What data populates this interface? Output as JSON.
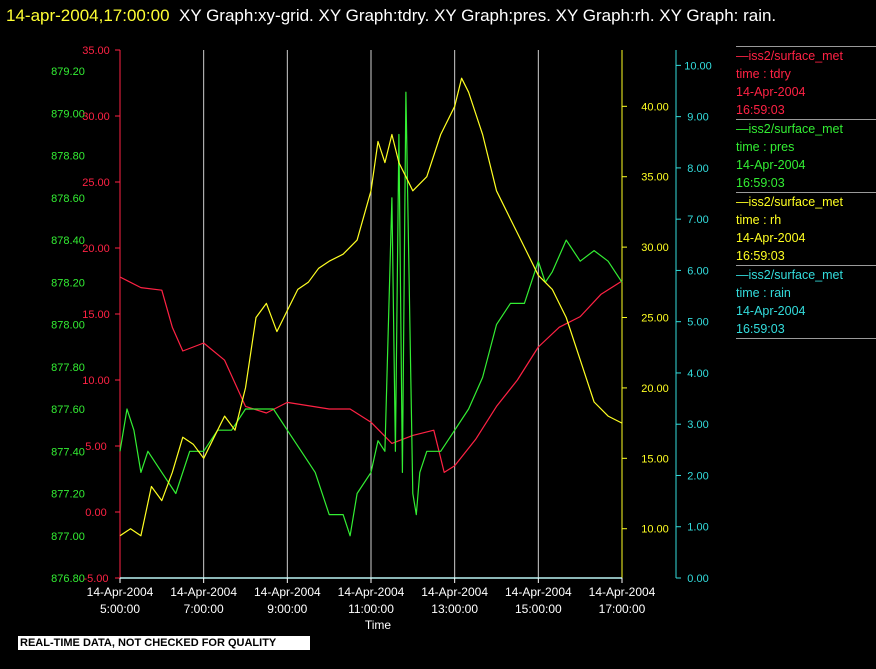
{
  "title": {
    "timestamp": "14-apr-2004,17:00:00",
    "text": "XY Graph:xy-grid.  XY Graph:tdry.  XY Graph:pres.  XY Graph:rh.  XY Graph: rain."
  },
  "legend": [
    {
      "name": "iss2/surface_met",
      "field": "time : tdry",
      "date": "14-Apr-2004",
      "time": "16:59:03",
      "color": "#ff2244"
    },
    {
      "name": "iss2/surface_met",
      "field": "time : pres",
      "date": "14-Apr-2004",
      "time": "16:59:03",
      "color": "#33ee33"
    },
    {
      "name": "iss2/surface_met",
      "field": "time : rh",
      "date": "14-Apr-2004",
      "time": "16:59:03",
      "color": "#ffff22"
    },
    {
      "name": "iss2/surface_met",
      "field": "time : rain",
      "date": "14-Apr-2004",
      "time": "16:59:03",
      "color": "#33dddd"
    }
  ],
  "footer": "REAL-TIME DATA, NOT CHECKED FOR QUALITY",
  "chart_data": {
    "type": "line",
    "xlabel": "Time",
    "x_ticks": [
      {
        "date": "14-Apr-2004",
        "time": "5:00:00"
      },
      {
        "date": "14-Apr-2004",
        "time": "7:00:00"
      },
      {
        "date": "14-Apr-2004",
        "time": "9:00:00"
      },
      {
        "date": "14-Apr-2004",
        "time": "11:00:00"
      },
      {
        "date": "14-Apr-2004",
        "time": "13:00:00"
      },
      {
        "date": "14-Apr-2004",
        "time": "15:00:00"
      },
      {
        "date": "14-Apr-2004",
        "time": "17:00:00"
      }
    ],
    "xlim": [
      "05:00",
      "17:00"
    ],
    "grid": "vertical",
    "axes": {
      "pres": {
        "color": "#33ee33",
        "lim": [
          876.8,
          879.3
        ],
        "ticks": [
          "876.80",
          "877.00",
          "877.20",
          "877.40",
          "877.60",
          "877.80",
          "878.00",
          "878.20",
          "878.40",
          "878.60",
          "878.80",
          "879.00",
          "879.20"
        ]
      },
      "tdry": {
        "color": "#ff2244",
        "lim": [
          -5,
          35
        ],
        "ticks": [
          "-5.00",
          "0.00",
          "5.00",
          "10.00",
          "15.00",
          "20.00",
          "25.00",
          "30.00",
          "35.00"
        ]
      },
      "rh": {
        "color": "#ffff22",
        "lim": [
          6.5,
          44
        ],
        "ticks": [
          "10.00",
          "15.00",
          "20.00",
          "25.00",
          "30.00",
          "35.00",
          "40.00"
        ]
      },
      "rain": {
        "color": "#33dddd",
        "lim": [
          0,
          10.3
        ],
        "ticks": [
          "0.00",
          "1.00",
          "2.00",
          "3.00",
          "4.00",
          "5.00",
          "6.00",
          "7.00",
          "8.00",
          "9.00",
          "10.00"
        ]
      }
    },
    "series": [
      {
        "name": "tdry",
        "axis": "tdry",
        "color": "#ff2244",
        "x": [
          "05:00",
          "05:30",
          "06:00",
          "06:15",
          "06:30",
          "07:00",
          "07:30",
          "08:00",
          "08:30",
          "09:00",
          "10:00",
          "10:30",
          "11:00",
          "11:30",
          "12:00",
          "12:30",
          "12:45",
          "13:00",
          "13:30",
          "14:00",
          "14:30",
          "15:00",
          "15:30",
          "16:00",
          "16:30",
          "17:00"
        ],
        "y": [
          17.8,
          17.0,
          16.8,
          14.0,
          12.2,
          12.8,
          11.5,
          8.0,
          7.5,
          8.3,
          7.8,
          7.8,
          6.8,
          5.2,
          5.8,
          6.2,
          3.0,
          3.5,
          5.5,
          8.0,
          10.0,
          12.5,
          14.0,
          14.8,
          16.5,
          17.5
        ]
      },
      {
        "name": "pres",
        "axis": "pres",
        "color": "#33ee33",
        "x": [
          "05:00",
          "05:10",
          "05:20",
          "05:30",
          "05:40",
          "06:00",
          "06:20",
          "06:40",
          "07:00",
          "07:20",
          "07:40",
          "08:00",
          "08:20",
          "08:40",
          "09:00",
          "09:20",
          "09:40",
          "10:00",
          "10:20",
          "10:30",
          "10:40",
          "11:00",
          "11:10",
          "11:20",
          "11:30",
          "11:35",
          "11:40",
          "11:45",
          "11:50",
          "12:00",
          "12:05",
          "12:10",
          "12:20",
          "12:40",
          "13:00",
          "13:20",
          "13:40",
          "14:00",
          "14:20",
          "14:40",
          "15:00",
          "15:10",
          "15:20",
          "15:40",
          "16:00",
          "16:20",
          "16:40",
          "17:00"
        ],
        "y": [
          877.4,
          877.6,
          877.5,
          877.3,
          877.4,
          877.3,
          877.2,
          877.4,
          877.4,
          877.5,
          877.5,
          877.6,
          877.6,
          877.6,
          877.5,
          877.4,
          877.3,
          877.1,
          877.1,
          877.0,
          877.2,
          877.3,
          877.45,
          877.4,
          878.6,
          877.4,
          878.9,
          877.3,
          879.1,
          877.2,
          877.1,
          877.3,
          877.4,
          877.4,
          877.5,
          877.6,
          877.75,
          878.0,
          878.1,
          878.1,
          878.3,
          878.2,
          878.25,
          878.4,
          878.3,
          878.35,
          878.3,
          878.2
        ]
      },
      {
        "name": "rh",
        "axis": "rh",
        "color": "#ffff22",
        "x": [
          "05:00",
          "05:15",
          "05:30",
          "05:45",
          "06:00",
          "06:15",
          "06:30",
          "06:45",
          "07:00",
          "07:15",
          "07:30",
          "07:45",
          "08:00",
          "08:15",
          "08:30",
          "08:45",
          "09:00",
          "09:15",
          "09:30",
          "09:45",
          "10:00",
          "10:20",
          "10:40",
          "11:00",
          "11:10",
          "11:20",
          "11:30",
          "11:40",
          "11:50",
          "12:00",
          "12:20",
          "12:40",
          "13:00",
          "13:10",
          "13:20",
          "13:40",
          "14:00",
          "14:20",
          "14:40",
          "15:00",
          "15:20",
          "15:40",
          "16:00",
          "16:20",
          "16:40",
          "17:00"
        ],
        "y": [
          9.5,
          10.0,
          9.5,
          13.0,
          12.0,
          14.0,
          16.5,
          16.0,
          15.0,
          16.5,
          18.0,
          17.0,
          20.0,
          25.0,
          26.0,
          24.0,
          25.5,
          27.0,
          27.5,
          28.5,
          29.0,
          29.5,
          30.5,
          34.0,
          37.5,
          36.0,
          38.0,
          36.0,
          35.0,
          34.0,
          35.0,
          38.0,
          40.0,
          42.0,
          41.0,
          38.0,
          34.0,
          32.0,
          30.0,
          28.0,
          27.0,
          25.0,
          22.0,
          19.0,
          18.0,
          17.5
        ]
      },
      {
        "name": "rain",
        "axis": "rain",
        "color": "#33dddd",
        "x": [
          "05:00",
          "17:00"
        ],
        "y": [
          0.0,
          0.0
        ]
      }
    ]
  }
}
